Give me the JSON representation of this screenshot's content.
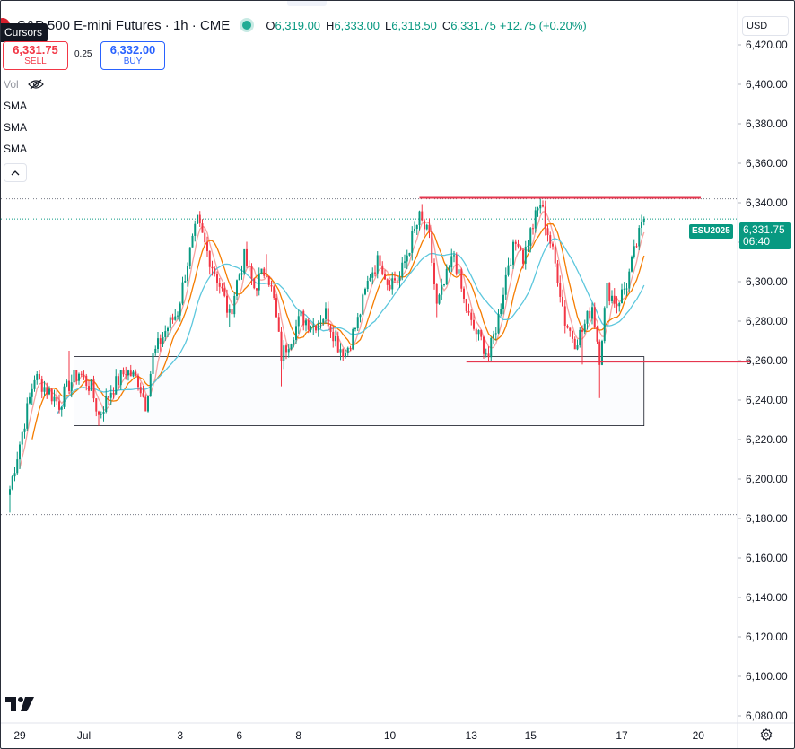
{
  "legend": {
    "title": "S&P 500 E-mini Futures · 1h · CME",
    "ohlc": [
      {
        "key": "O",
        "value": "6,319.00"
      },
      {
        "key": "H",
        "value": "6,333.00"
      },
      {
        "key": "L",
        "value": "6,318.50"
      },
      {
        "key": "C",
        "value": "6,331.75"
      }
    ],
    "change": "+12.75 (+0.20%)"
  },
  "tooltip": "Cursors",
  "trade": {
    "sell_price": "6,331.75",
    "sell_label": "SELL",
    "spread": "0.25",
    "buy_price": "6,332.00",
    "buy_label": "BUY"
  },
  "indicators": {
    "vol_label": "Vol",
    "sma_labels": [
      "SMA",
      "SMA",
      "SMA"
    ]
  },
  "currency": "USD",
  "price_tag": {
    "symbol": "ESU2025",
    "price": "6,331.75",
    "countdown": "06:40"
  },
  "colors": {
    "up": "#089981",
    "down": "#f23645",
    "sma_fast": "#f7a29f",
    "sma_mid": "#f57c00",
    "sma_slow": "#5cc7dd",
    "level_line": "#e5374f"
  },
  "chart_data": {
    "type": "candlestick",
    "symbol": "ESU2025",
    "interval": "1h",
    "ylim": [
      6075,
      6440
    ],
    "y_ticks": [
      6080,
      6100,
      6120,
      6140,
      6160,
      6180,
      6200,
      6220,
      6240,
      6260,
      6280,
      6300,
      6320,
      6340,
      6360,
      6380,
      6400,
      6420
    ],
    "y_tick_labels": [
      "6,080.00",
      "6,100.00",
      "6,120.00",
      "6,140.00",
      "6,160.00",
      "6,180.00",
      "6,200.00",
      "6,220.00",
      "6,240.00",
      "6,260.00",
      "6,280.00",
      "6,300.00",
      "6,320.00",
      "6,340.00",
      "6,360.00",
      "6,380.00",
      "6,400.00",
      "6,420.00"
    ],
    "x_ticks": [
      {
        "label": "29",
        "bar": 4
      },
      {
        "label": "Jul",
        "bar": 30
      },
      {
        "label": "3",
        "bar": 69
      },
      {
        "label": "6",
        "bar": 93
      },
      {
        "label": "8",
        "bar": 117
      },
      {
        "label": "10",
        "bar": 154
      },
      {
        "label": "13",
        "bar": 187
      },
      {
        "label": "15",
        "bar": 211
      },
      {
        "label": "17",
        "bar": 248
      },
      {
        "label": "20",
        "bar": 279
      }
    ],
    "x_range_bars": [
      -1,
      299
    ],
    "last_price": 6331.75,
    "dotted_levels": [
      6342,
      6331.75,
      6182
    ],
    "horizontal_lines": [
      {
        "price": 6342.5,
        "from_bar": 166,
        "to_bar": 280
      },
      {
        "price": 6259.5,
        "from_bar": 185,
        "to_bar": 300
      }
    ],
    "range_box": {
      "from_bar": 26,
      "to_bar": 257,
      "top": 6262,
      "bottom": 6227
    },
    "anchors": [
      {
        "bar": 0,
        "price": 6195,
        "low": 6183
      },
      {
        "bar": 4,
        "price": 6218,
        "low": 6205
      },
      {
        "bar": 10,
        "price": 6252
      },
      {
        "bar": 16,
        "price": 6244
      },
      {
        "bar": 20,
        "price": 6238
      },
      {
        "bar": 24,
        "price": 6248,
        "high": 6265
      },
      {
        "bar": 28,
        "price": 6254
      },
      {
        "bar": 33,
        "price": 6246
      },
      {
        "bar": 36,
        "price": 6232,
        "low": 6227
      },
      {
        "bar": 41,
        "price": 6245
      },
      {
        "bar": 47,
        "price": 6255
      },
      {
        "bar": 52,
        "price": 6250
      },
      {
        "bar": 55,
        "price": 6238,
        "low": 6235
      },
      {
        "bar": 58,
        "price": 6262
      },
      {
        "bar": 63,
        "price": 6275
      },
      {
        "bar": 68,
        "price": 6285
      },
      {
        "bar": 72,
        "price": 6310
      },
      {
        "bar": 76,
        "price": 6330,
        "high": 6333
      },
      {
        "bar": 80,
        "price": 6315
      },
      {
        "bar": 86,
        "price": 6295
      },
      {
        "bar": 89,
        "price": 6282,
        "low": 6277
      },
      {
        "bar": 92,
        "price": 6300
      },
      {
        "bar": 95,
        "price": 6312,
        "high": 6315
      },
      {
        "bar": 99,
        "price": 6297
      },
      {
        "bar": 104,
        "price": 6307,
        "high": 6314
      },
      {
        "bar": 107,
        "price": 6290
      },
      {
        "bar": 110,
        "price": 6262,
        "low": 6247
      },
      {
        "bar": 113,
        "price": 6270
      },
      {
        "bar": 118,
        "price": 6282
      },
      {
        "bar": 123,
        "price": 6278
      },
      {
        "bar": 128,
        "price": 6284
      },
      {
        "bar": 133,
        "price": 6268
      },
      {
        "bar": 136,
        "price": 6264,
        "low": 6261
      },
      {
        "bar": 141,
        "price": 6280
      },
      {
        "bar": 146,
        "price": 6304
      },
      {
        "bar": 150,
        "price": 6312
      },
      {
        "bar": 153,
        "price": 6300
      },
      {
        "bar": 158,
        "price": 6302
      },
      {
        "bar": 163,
        "price": 6322
      },
      {
        "bar": 166,
        "price": 6332,
        "high": 6336
      },
      {
        "bar": 170,
        "price": 6322
      },
      {
        "bar": 173,
        "price": 6287,
        "low": 6282
      },
      {
        "bar": 177,
        "price": 6302
      },
      {
        "bar": 180,
        "price": 6314
      },
      {
        "bar": 184,
        "price": 6290
      },
      {
        "bar": 187,
        "price": 6278
      },
      {
        "bar": 191,
        "price": 6270
      },
      {
        "bar": 194,
        "price": 6262,
        "low": 6260
      },
      {
        "bar": 198,
        "price": 6282
      },
      {
        "bar": 202,
        "price": 6310
      },
      {
        "bar": 206,
        "price": 6322
      },
      {
        "bar": 208,
        "price": 6312
      },
      {
        "bar": 211,
        "price": 6325
      },
      {
        "bar": 215,
        "price": 6340,
        "high": 6342
      },
      {
        "bar": 219,
        "price": 6320
      },
      {
        "bar": 222,
        "price": 6303
      },
      {
        "bar": 225,
        "price": 6280
      },
      {
        "bar": 229,
        "price": 6270,
        "low": 6266
      },
      {
        "bar": 232,
        "price": 6275,
        "low": 6258
      },
      {
        "bar": 236,
        "price": 6288
      },
      {
        "bar": 239,
        "price": 6262,
        "low": 6241
      },
      {
        "bar": 242,
        "price": 6296
      },
      {
        "bar": 246,
        "price": 6289
      },
      {
        "bar": 250,
        "price": 6299
      },
      {
        "bar": 254,
        "price": 6319
      },
      {
        "bar": 257,
        "price": 6331.75,
        "high": 6333
      }
    ]
  }
}
